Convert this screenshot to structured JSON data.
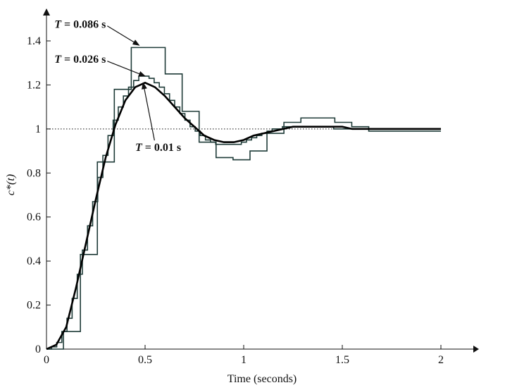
{
  "chart_data": {
    "type": "line",
    "title": "",
    "xlabel": "Time (seconds)",
    "ylabel": "c*(t)",
    "xlim": [
      0,
      2.2
    ],
    "ylim": [
      0,
      1.5
    ],
    "xticks": [
      0,
      0.5,
      1,
      1.5,
      2
    ],
    "xtick_labels": [
      "0",
      "0.5",
      "1",
      "1.5",
      "2"
    ],
    "yticks": [
      0,
      0.2,
      0.4,
      0.6,
      0.8,
      1,
      1.2,
      1.4
    ],
    "ytick_labels": [
      "0",
      "0.2",
      "0.4",
      "0.6",
      "0.8",
      "1",
      "1.2",
      "1.4"
    ],
    "grid": false,
    "reference_line": {
      "y": 1,
      "style": "dotted"
    },
    "series": [
      {
        "name": "T = 0.086 s",
        "step": true,
        "color": "#1f3b38",
        "x": [
          0,
          0.086,
          0.172,
          0.258,
          0.344,
          0.43,
          0.516,
          0.602,
          0.688,
          0.774,
          0.86,
          0.946,
          1.032,
          1.118,
          1.204,
          1.29,
          1.376,
          1.462,
          1.548,
          1.634,
          1.72,
          1.806,
          1.892,
          1.978
        ],
        "y": [
          0,
          0.08,
          0.43,
          0.85,
          1.18,
          1.37,
          1.37,
          1.25,
          1.08,
          0.94,
          0.87,
          0.86,
          0.9,
          0.98,
          1.03,
          1.05,
          1.05,
          1.03,
          1.01,
          0.99,
          0.99,
          0.99,
          0.99,
          0.99
        ]
      },
      {
        "name": "T = 0.026 s",
        "step": true,
        "color": "#1f3b38",
        "x": [
          0,
          0.026,
          0.052,
          0.078,
          0.104,
          0.13,
          0.156,
          0.182,
          0.208,
          0.234,
          0.26,
          0.286,
          0.312,
          0.338,
          0.364,
          0.39,
          0.416,
          0.442,
          0.468,
          0.494,
          0.52,
          0.546,
          0.572,
          0.598,
          0.624,
          0.65,
          0.676,
          0.702,
          0.728,
          0.754,
          0.78,
          0.806,
          0.832,
          0.858,
          0.884,
          0.91,
          0.936,
          0.962,
          0.988,
          1.014,
          1.04,
          1.066,
          1.092,
          1.118,
          1.144,
          1.17,
          1.196,
          1.222,
          1.248,
          1.274,
          1.3,
          1.326,
          1.352,
          1.378,
          1.404,
          1.43,
          1.456,
          1.482,
          1.508,
          1.534,
          1.56,
          1.586,
          1.612,
          1.638,
          1.664,
          1.69,
          1.716,
          1.742,
          1.768,
          1.794,
          1.82,
          1.846,
          1.872,
          1.898,
          1.924,
          1.95,
          1.976
        ],
        "y": [
          0,
          0.01,
          0.03,
          0.08,
          0.14,
          0.23,
          0.34,
          0.45,
          0.56,
          0.67,
          0.78,
          0.88,
          0.97,
          1.04,
          1.1,
          1.15,
          1.19,
          1.22,
          1.24,
          1.24,
          1.23,
          1.21,
          1.19,
          1.16,
          1.13,
          1.1,
          1.07,
          1.04,
          1.01,
          0.99,
          0.97,
          0.95,
          0.94,
          0.93,
          0.93,
          0.93,
          0.93,
          0.93,
          0.94,
          0.95,
          0.96,
          0.97,
          0.98,
          0.99,
          1.0,
          1.0,
          1.01,
          1.01,
          1.01,
          1.01,
          1.01,
          1.01,
          1.01,
          1.01,
          1.01,
          1.01,
          1.0,
          1.0,
          1.0,
          1.0,
          1.0,
          1.0,
          1.0,
          1.0,
          1.0,
          1.0,
          1.0,
          1.0,
          1.0,
          1.0,
          1.0,
          1.0,
          1.0,
          1.0,
          1.0,
          1.0,
          1.0
        ]
      },
      {
        "name": "T = 0.01 s",
        "step": false,
        "color": "#000000",
        "x": [
          0,
          0.05,
          0.1,
          0.15,
          0.2,
          0.25,
          0.3,
          0.35,
          0.4,
          0.45,
          0.5,
          0.55,
          0.6,
          0.65,
          0.7,
          0.75,
          0.8,
          0.85,
          0.9,
          0.95,
          1.0,
          1.05,
          1.1,
          1.15,
          1.2,
          1.25,
          1.3,
          1.35,
          1.4,
          1.45,
          1.5,
          1.55,
          1.6,
          1.65,
          1.7,
          1.75,
          1.8,
          1.85,
          1.9,
          1.95,
          2.0
        ],
        "y": [
          0,
          0.02,
          0.1,
          0.28,
          0.48,
          0.68,
          0.87,
          1.02,
          1.13,
          1.19,
          1.21,
          1.19,
          1.15,
          1.1,
          1.05,
          1.01,
          0.97,
          0.95,
          0.94,
          0.94,
          0.95,
          0.97,
          0.98,
          0.99,
          1.0,
          1.01,
          1.01,
          1.01,
          1.01,
          1.01,
          1.01,
          1.0,
          1.0,
          1.0,
          1.0,
          1.0,
          1.0,
          1.0,
          1.0,
          1.0,
          1.0
        ]
      }
    ],
    "annotations": [
      {
        "italic": "T",
        "text": " = 0.086 s",
        "x": 0.04,
        "y": 1.46,
        "arrow_to": [
          0.47,
          1.38
        ]
      },
      {
        "italic": "T",
        "text": " = 0.026 s",
        "x": 0.04,
        "y": 1.3,
        "arrow_to": [
          0.5,
          1.24
        ]
      },
      {
        "italic": "T",
        "text": " = 0.01 s",
        "x": 0.45,
        "y": 0.9,
        "arrow_to": [
          0.49,
          1.21
        ]
      }
    ]
  }
}
